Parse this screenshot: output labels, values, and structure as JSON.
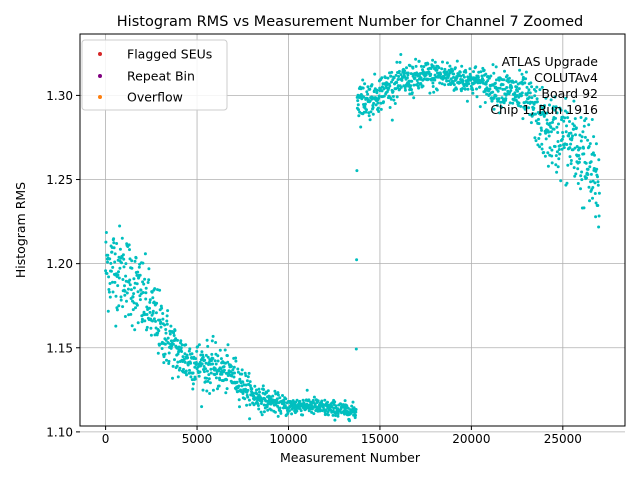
{
  "chart_data": {
    "type": "scatter",
    "title": "Histogram RMS vs Measurement Number for Channel 7 Zoomed",
    "xlabel": "Measurement Number",
    "ylabel": "Histogram RMS",
    "xlim": [
      -1400,
      28400
    ],
    "ylim": [
      1.1035,
      1.3365
    ],
    "xticks": [
      0,
      5000,
      10000,
      15000,
      20000,
      25000
    ],
    "xtick_labels": [
      "0",
      "5000",
      "10000",
      "15000",
      "20000",
      "25000"
    ],
    "yticks": [
      1.1,
      1.15,
      1.2,
      1.25,
      1.3
    ],
    "ytick_labels": [
      "1.10",
      "1.15",
      "1.20",
      "1.25",
      "1.30"
    ],
    "grid": true,
    "legend_position": "top-left",
    "legend": [
      {
        "label": "Flagged SEUs",
        "color": "#d62728"
      },
      {
        "label": "Repeat Bin",
        "color": "#800080"
      },
      {
        "label": "Overflow",
        "color": "#ff7f0e"
      }
    ],
    "annotation_lines": [
      "ATLAS Upgrade",
      "COLUTAv4",
      "Board 92",
      "Chip 1, Run 1916"
    ],
    "series": [
      {
        "color": "#00bfbf",
        "trend_x": [
          0,
          1000,
          2000,
          3000,
          4000,
          5000,
          6000,
          7000,
          8000,
          9000,
          10000,
          11000,
          12000,
          13000,
          13700,
          13750,
          14500,
          15000,
          16000,
          17000,
          18000,
          19000,
          20000,
          21000,
          22000,
          23000,
          23500,
          24000,
          25000,
          26000,
          27000
        ],
        "trend_y": [
          1.2,
          1.195,
          1.18,
          1.162,
          1.145,
          1.14,
          1.138,
          1.134,
          1.122,
          1.118,
          1.115,
          1.116,
          1.114,
          1.113,
          1.112,
          1.298,
          1.298,
          1.302,
          1.308,
          1.31,
          1.312,
          1.311,
          1.309,
          1.306,
          1.303,
          1.298,
          1.29,
          1.28,
          1.275,
          1.265,
          1.245
        ],
        "spread_x": [
          0,
          2000,
          3000,
          4000,
          6000,
          8000,
          9000,
          13700,
          13750,
          15000,
          20000,
          23000,
          24000,
          27000
        ],
        "spread_y": [
          0.018,
          0.016,
          0.013,
          0.01,
          0.009,
          0.006,
          0.004,
          0.003,
          0.008,
          0.007,
          0.006,
          0.009,
          0.014,
          0.02
        ]
      }
    ]
  }
}
